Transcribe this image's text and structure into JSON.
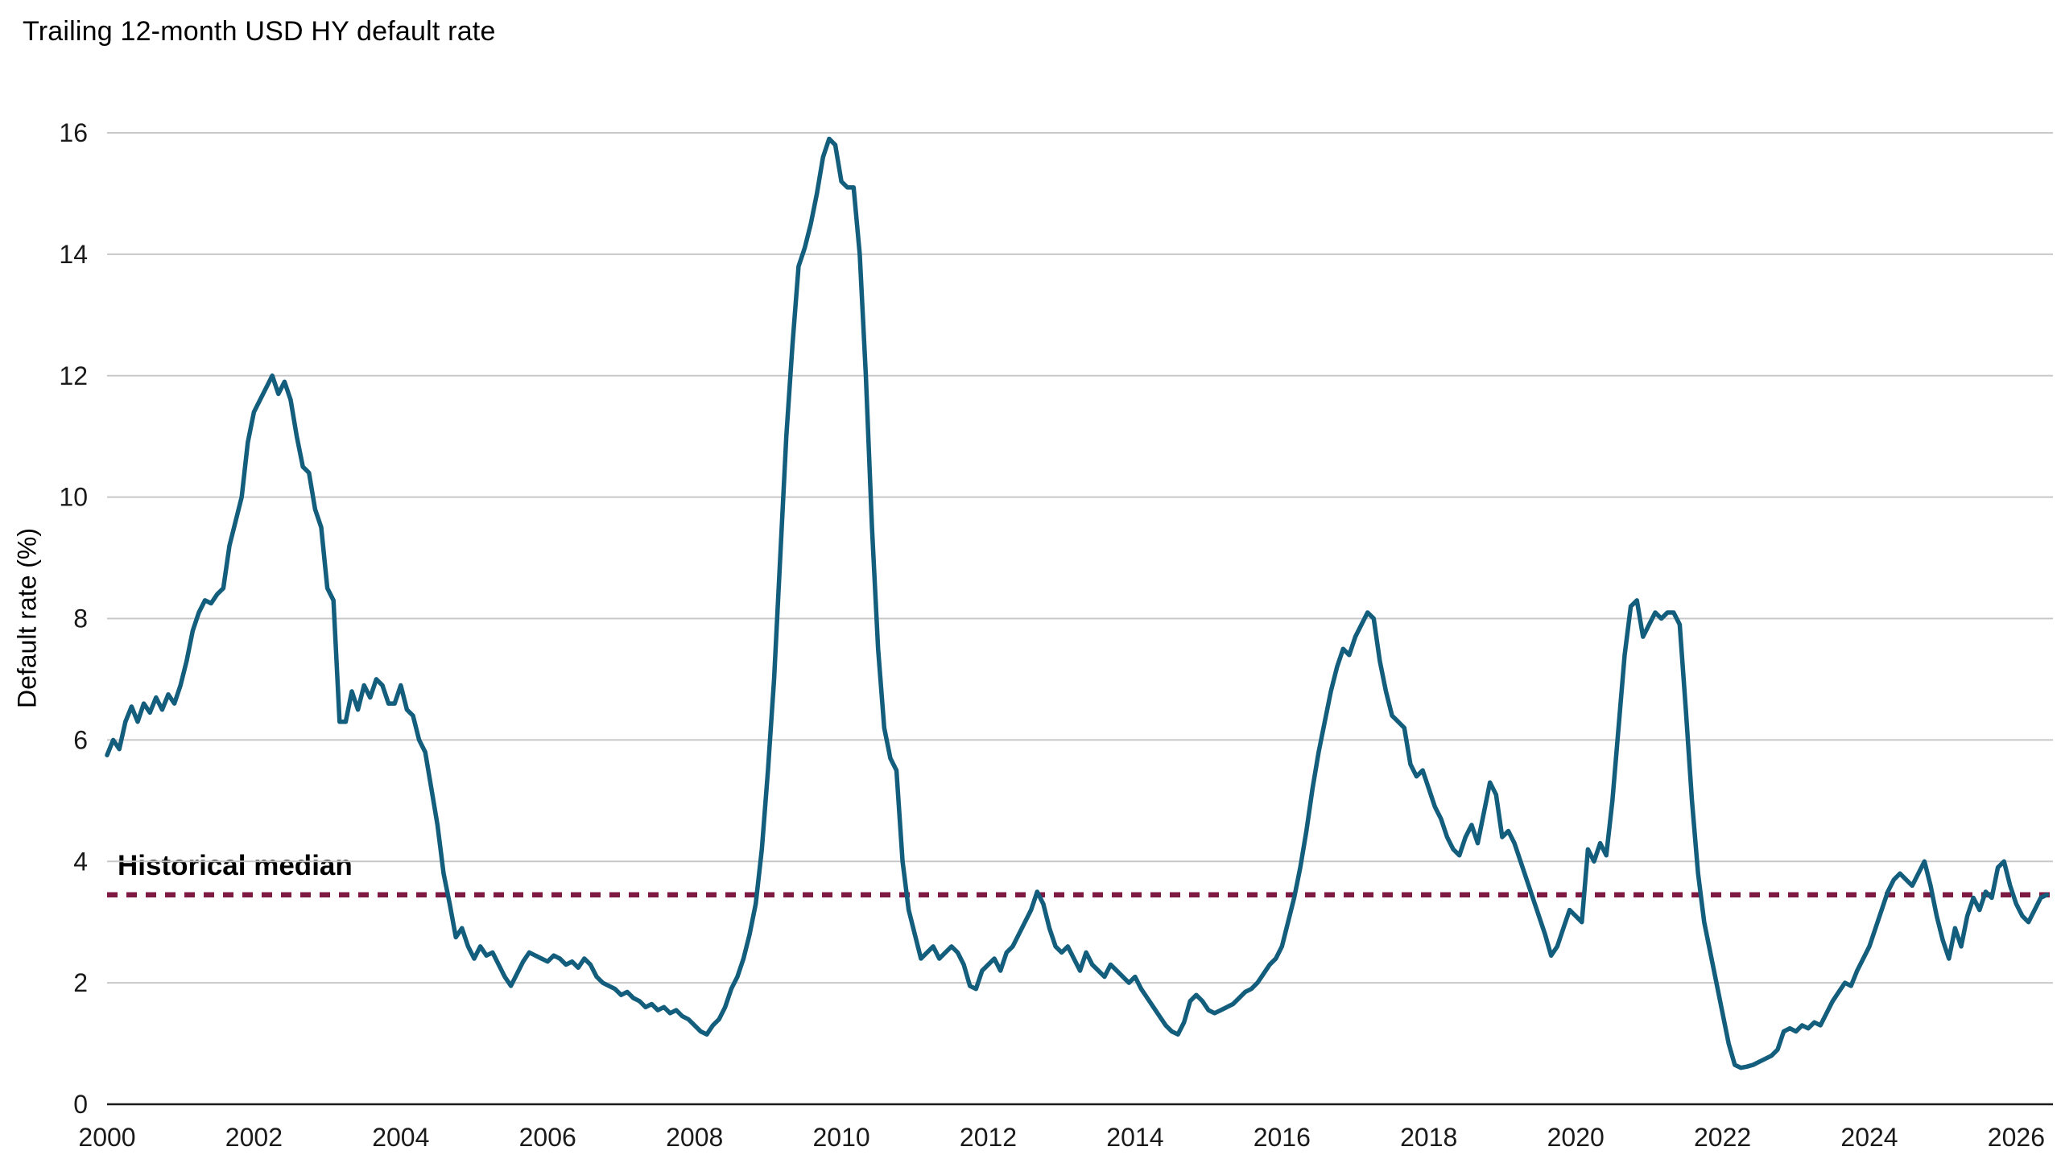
{
  "chart_data": {
    "type": "line",
    "title": "Trailing 12-month USD HY default rate",
    "xlabel": "",
    "ylabel": "Default rate (%)",
    "ylim": [
      0,
      16
    ],
    "xlim": [
      2000,
      2026.5
    ],
    "y_ticks": [
      0,
      2,
      4,
      6,
      8,
      10,
      12,
      14,
      16
    ],
    "x_ticks": [
      2000,
      2002,
      2004,
      2006,
      2008,
      2010,
      2012,
      2014,
      2016,
      2018,
      2020,
      2022,
      2024,
      2026
    ],
    "grid": "horizontal",
    "legend": "none",
    "reference_line": {
      "label": "Historical median",
      "value": 3.45,
      "color": "#7d1a42",
      "style": "dotted"
    },
    "series": [
      {
        "name": "Trailing 12-month USD HY default rate",
        "color": "#135d7d",
        "frequency": "monthly",
        "x_start": 2000.0,
        "values": [
          5.75,
          6.0,
          5.85,
          6.3,
          6.55,
          6.3,
          6.6,
          6.45,
          6.7,
          6.5,
          6.75,
          6.6,
          6.9,
          7.3,
          7.8,
          8.1,
          8.3,
          8.25,
          8.4,
          8.5,
          9.2,
          9.6,
          10.0,
          10.9,
          11.4,
          11.6,
          11.8,
          12.0,
          11.7,
          11.9,
          11.6,
          11.0,
          10.5,
          10.4,
          9.8,
          9.5,
          8.5,
          8.3,
          6.3,
          6.3,
          6.8,
          6.5,
          6.9,
          6.7,
          7.0,
          6.9,
          6.6,
          6.6,
          6.9,
          6.5,
          6.4,
          6.0,
          5.8,
          5.2,
          4.6,
          3.8,
          3.3,
          2.75,
          2.9,
          2.6,
          2.4,
          2.6,
          2.45,
          2.5,
          2.3,
          2.1,
          1.95,
          2.15,
          2.35,
          2.5,
          2.45,
          2.4,
          2.35,
          2.45,
          2.4,
          2.3,
          2.35,
          2.25,
          2.4,
          2.3,
          2.1,
          2.0,
          1.95,
          1.9,
          1.8,
          1.85,
          1.75,
          1.7,
          1.6,
          1.65,
          1.55,
          1.6,
          1.5,
          1.55,
          1.45,
          1.4,
          1.3,
          1.2,
          1.15,
          1.3,
          1.4,
          1.6,
          1.9,
          2.1,
          2.4,
          2.8,
          3.3,
          4.2,
          5.5,
          7.0,
          9.0,
          11.0,
          12.5,
          13.8,
          14.1,
          14.5,
          15.0,
          15.6,
          15.9,
          15.8,
          15.2,
          15.1,
          15.1,
          14.0,
          12.0,
          9.5,
          7.5,
          6.2,
          5.7,
          5.5,
          4.0,
          3.2,
          2.8,
          2.4,
          2.5,
          2.6,
          2.4,
          2.5,
          2.6,
          2.5,
          2.3,
          1.95,
          1.9,
          2.2,
          2.3,
          2.4,
          2.2,
          2.5,
          2.6,
          2.8,
          3.0,
          3.2,
          3.5,
          3.3,
          2.9,
          2.6,
          2.5,
          2.6,
          2.4,
          2.2,
          2.5,
          2.3,
          2.2,
          2.1,
          2.3,
          2.2,
          2.1,
          2.0,
          2.1,
          1.9,
          1.75,
          1.6,
          1.45,
          1.3,
          1.2,
          1.15,
          1.35,
          1.7,
          1.8,
          1.7,
          1.55,
          1.5,
          1.55,
          1.6,
          1.65,
          1.75,
          1.85,
          1.9,
          2.0,
          2.15,
          2.3,
          2.4,
          2.6,
          3.0,
          3.4,
          3.9,
          4.5,
          5.2,
          5.8,
          6.3,
          6.8,
          7.2,
          7.5,
          7.4,
          7.7,
          7.9,
          8.1,
          8.0,
          7.3,
          6.8,
          6.4,
          6.3,
          6.2,
          5.6,
          5.4,
          5.5,
          5.2,
          4.9,
          4.7,
          4.4,
          4.2,
          4.1,
          4.4,
          4.6,
          4.3,
          4.8,
          5.3,
          5.1,
          4.4,
          4.5,
          4.3,
          4.0,
          3.7,
          3.4,
          3.1,
          2.8,
          2.45,
          2.6,
          2.9,
          3.2,
          3.1,
          3.0,
          4.2,
          4.0,
          4.3,
          4.1,
          5.0,
          6.2,
          7.4,
          8.2,
          8.3,
          7.7,
          7.9,
          8.1,
          8.0,
          8.1,
          8.1,
          7.9,
          6.5,
          5.0,
          3.8,
          3.0,
          2.5,
          2.0,
          1.5,
          1.0,
          0.65,
          0.6,
          0.62,
          0.65,
          0.7,
          0.75,
          0.8,
          0.9,
          1.2,
          1.25,
          1.2,
          1.3,
          1.25,
          1.35,
          1.3,
          1.5,
          1.7,
          1.85,
          2.0,
          1.95,
          2.2,
          2.4,
          2.6,
          2.9,
          3.2,
          3.5,
          3.7,
          3.8,
          3.7,
          3.6,
          3.8,
          4.0,
          3.6,
          3.1,
          2.7,
          2.4,
          2.9,
          2.6,
          3.1,
          3.4,
          3.2,
          3.5,
          3.4,
          3.9,
          4.0,
          3.6,
          3.3,
          3.1,
          3.0,
          3.2,
          3.4,
          3.45
        ]
      }
    ]
  }
}
